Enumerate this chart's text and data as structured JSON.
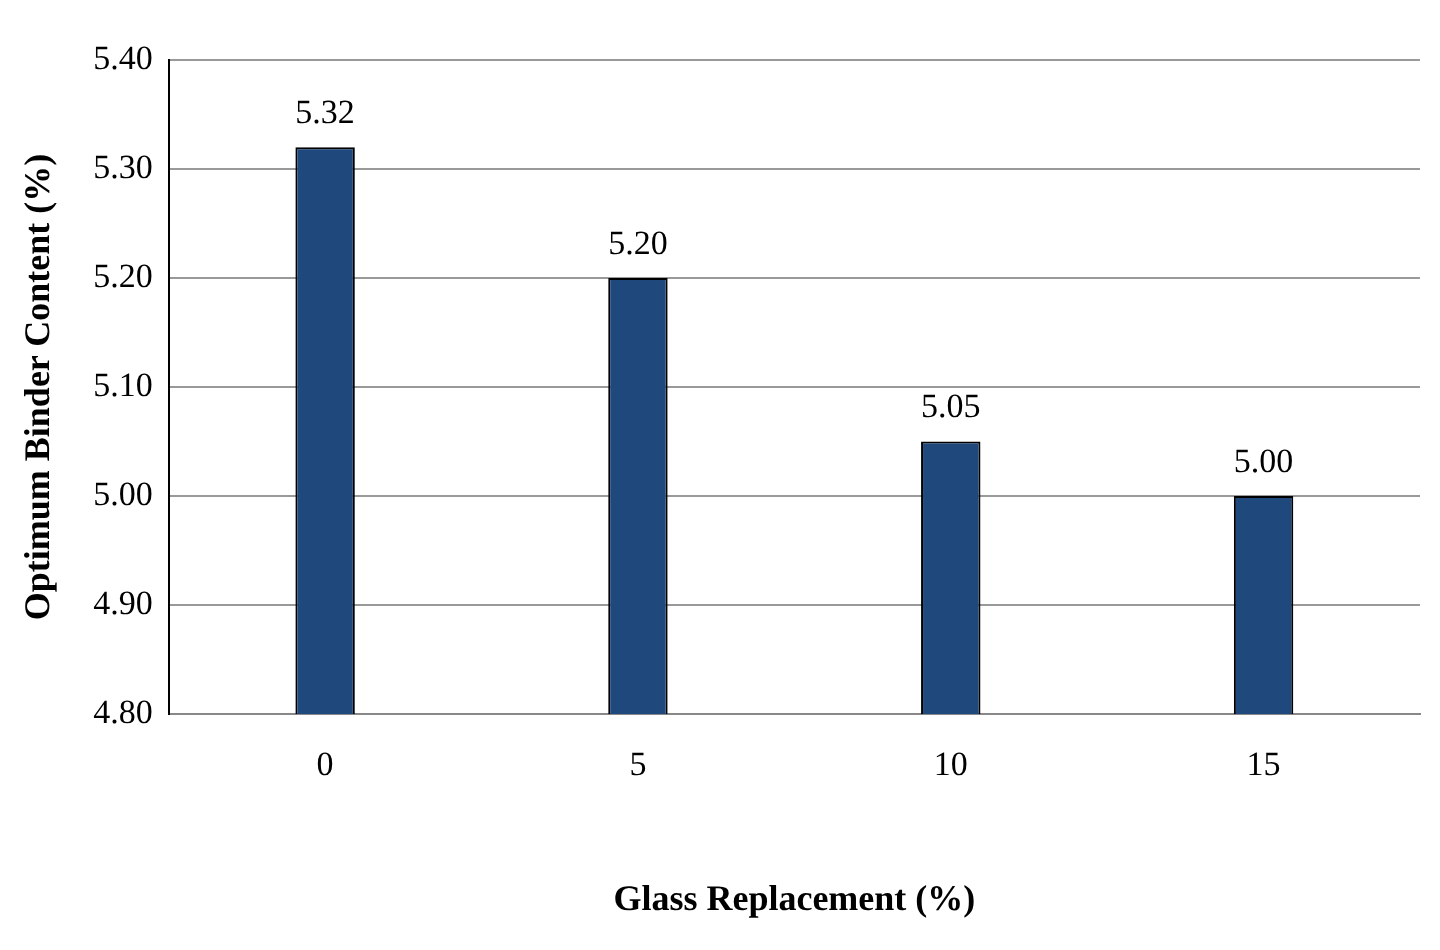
{
  "chart_data": {
    "type": "bar",
    "xlabel": "Glass Replacement (%)",
    "ylabel": "Optimum Binder Content (%)",
    "categories": [
      "0",
      "5",
      "10",
      "15"
    ],
    "values": [
      5.32,
      5.2,
      5.05,
      5.0
    ],
    "value_labels": [
      "5.32",
      "5.20",
      "5.05",
      "5.00"
    ],
    "color": "#1f497d",
    "ylim": [
      4.8,
      5.4
    ],
    "yticks": [
      {
        "value": 4.8,
        "label": "4.80"
      },
      {
        "value": 4.9,
        "label": "4.90"
      },
      {
        "value": 5.0,
        "label": "5.00"
      },
      {
        "value": 5.1,
        "label": "5.10"
      },
      {
        "value": 5.2,
        "label": "5.20"
      },
      {
        "value": 5.3,
        "label": "5.30"
      },
      {
        "value": 5.4,
        "label": "5.40"
      }
    ],
    "grid": "y",
    "legend": false
  }
}
